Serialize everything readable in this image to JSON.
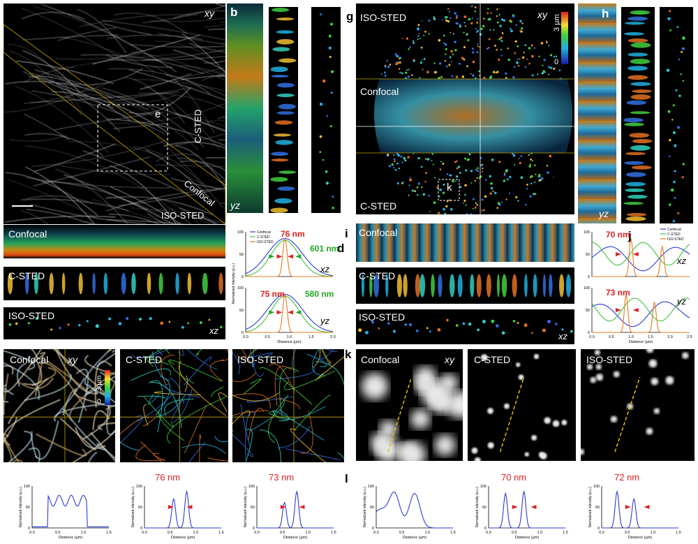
{
  "panels": {
    "a": {
      "plane": "xy",
      "callout": "e",
      "regions": [
        "C-STED",
        "Confocal",
        "ISO-STED"
      ],
      "orientation": "yz"
    },
    "b": {
      "letter": "b"
    },
    "d_left": {
      "rows": [
        "Confocal",
        "C-STED",
        "ISO-STED"
      ],
      "plane": "xz"
    },
    "d": {
      "letter": "d",
      "legend": [
        "Confocal",
        "C-STED",
        "ISO-STED"
      ],
      "top": {
        "red": "76 nm",
        "green": "601 nm",
        "plane": "xz"
      },
      "bottom": {
        "red": "75 nm",
        "green": "580 nm",
        "plane": "yz"
      },
      "ylabel": "Normalized intensity (a.u.)",
      "xlabel": "Distance (µm)",
      "xticks": [
        "0.0",
        "0.5",
        "1.0",
        "1.5",
        "2.0"
      ],
      "yticks": [
        "0",
        "50",
        "100"
      ]
    },
    "g": {
      "letter": "g",
      "plane": "xy",
      "colorbar_top": "3 µm",
      "colorbar_bottom": "0",
      "regions": [
        "ISO-STED",
        "Confocal",
        "C-STED"
      ],
      "callout": "k"
    },
    "h": {
      "letter": "h",
      "plane": "yz"
    },
    "i": {
      "letter": "i",
      "rows": [
        "Confocal",
        "C-STED",
        "ISO-STED"
      ],
      "plane": "xz"
    },
    "j": {
      "letter": "j",
      "legend": [
        "Confocal",
        "C-STED",
        "ISO-STED"
      ],
      "top": {
        "red": "70 nm",
        "plane": "xz"
      },
      "bottom": {
        "red": "73 nm",
        "plane": "yz"
      },
      "xticks": [
        "0.0",
        "0.5",
        "1.0",
        "1.5",
        "2.0",
        "2.5"
      ],
      "yticks": [
        "0",
        "50",
        "100"
      ]
    },
    "bottom_left": {
      "titles": [
        "Confocal",
        "C-STED",
        "ISO-STED"
      ],
      "plane": "xy",
      "colorbar_top": "3 µm",
      "colorbar_bottom": "0",
      "profiles": [
        {
          "value": ""
        },
        {
          "value": "76 nm"
        },
        {
          "value": "73 nm"
        }
      ]
    },
    "k": {
      "letter": "k",
      "titles": [
        "Confocal",
        "C-STED",
        "ISO-STED"
      ],
      "plane": "xy"
    },
    "l": {
      "letter": "l",
      "profiles": [
        {
          "value": ""
        },
        {
          "value": "70 nm"
        },
        {
          "value": "72 nm"
        }
      ]
    }
  },
  "profile_axes": {
    "ylabel": "Normalized intensity (a.u.)",
    "xlabel": "Distance (µm)",
    "xticks": [
      "0.0",
      "0.5",
      "1.0",
      "1.5"
    ],
    "yticks": [
      "0",
      "50",
      "100"
    ]
  },
  "colors": {
    "confocal": "#2b3bd8",
    "csted": "#3fbf3f",
    "isosted": "#f07818",
    "annotation_red": "#e02020",
    "annotation_green": "#22a822",
    "guide_yellow": "#d4b400"
  }
}
